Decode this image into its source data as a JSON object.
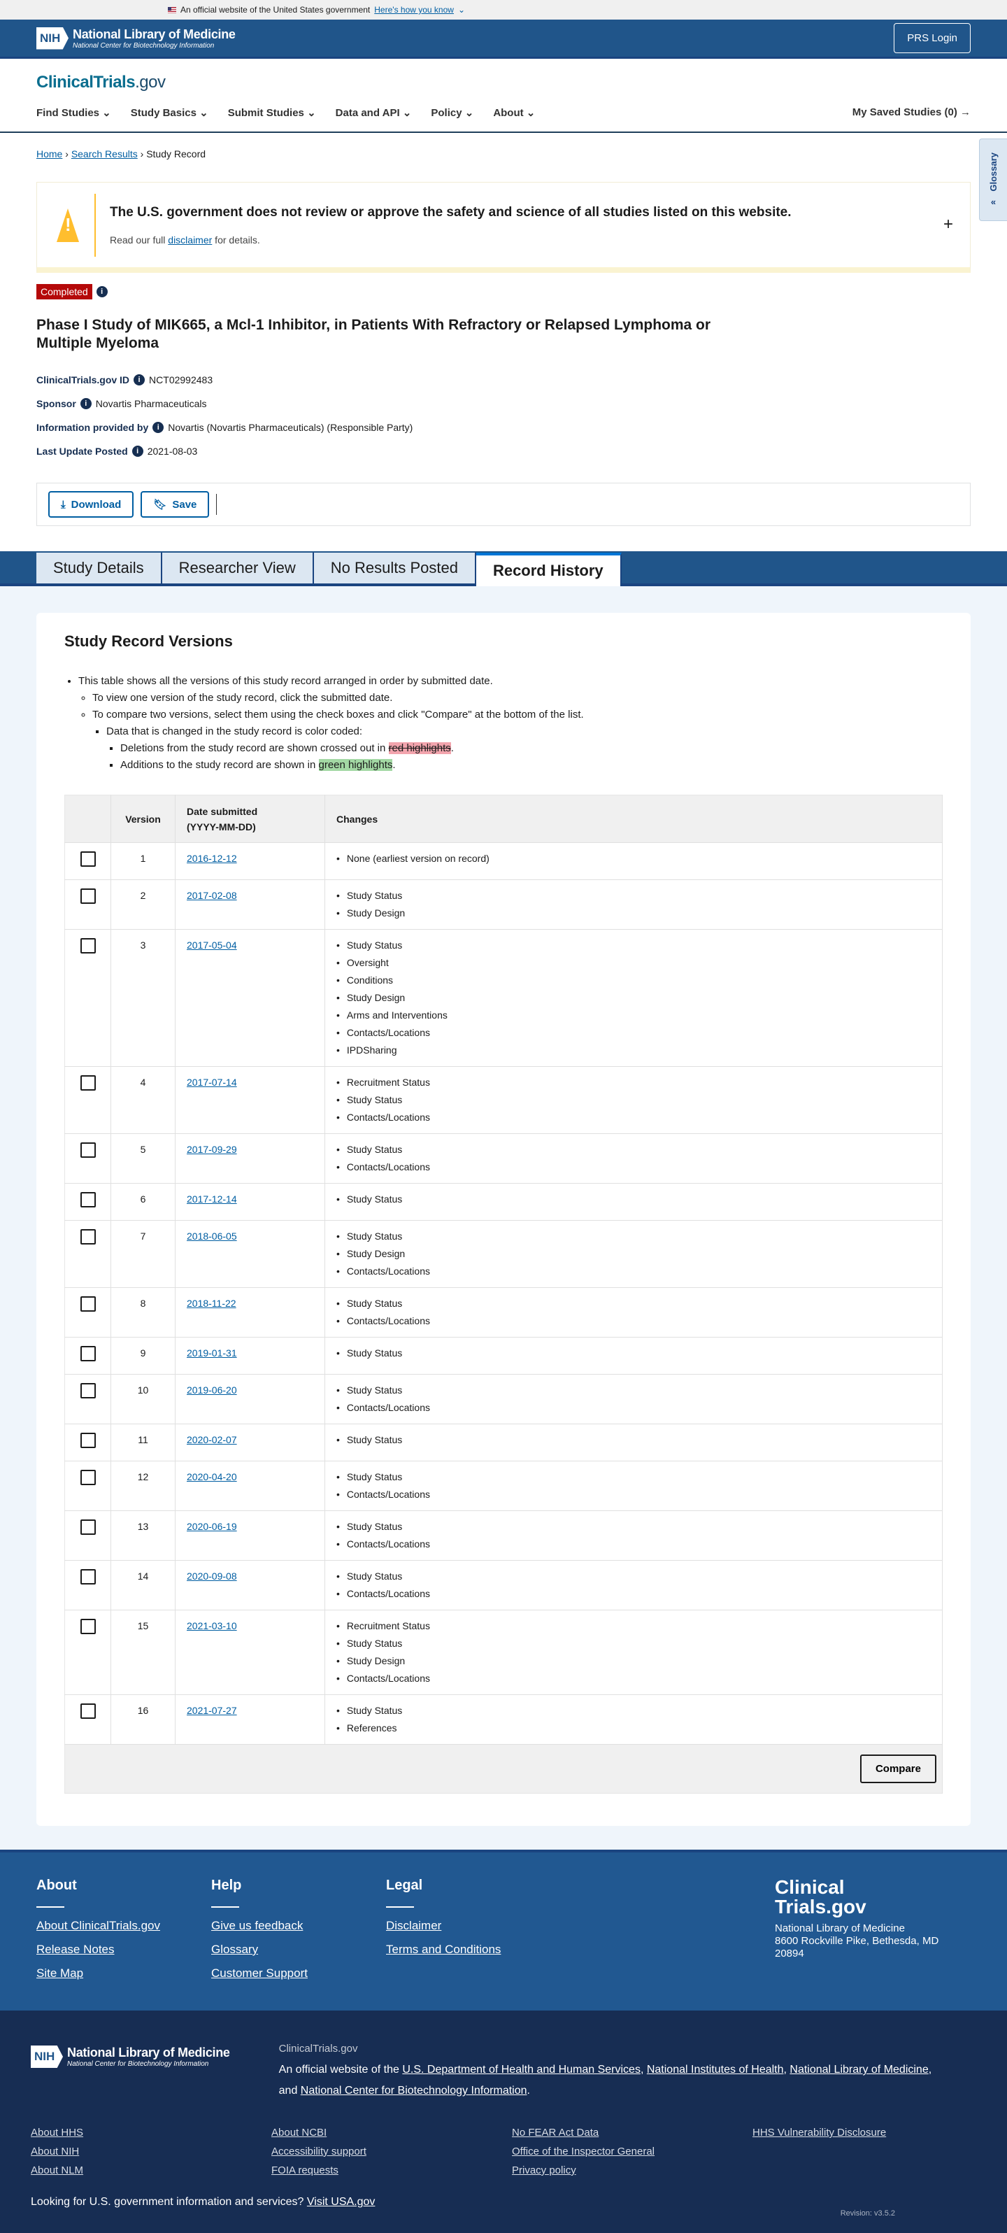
{
  "gov_banner": {
    "text": "An official website of the United States government",
    "link": "Here's how you know"
  },
  "header": {
    "nlm": "National Library of Medicine",
    "ncbi": "National Center for Biotechnology Information",
    "nih": "NIH",
    "login": "PRS Login"
  },
  "site": {
    "logo_main": "ClinicalTrials",
    "logo_suffix": ".gov"
  },
  "nav": {
    "items": [
      "Find Studies",
      "Study Basics",
      "Submit Studies",
      "Data and API",
      "Policy",
      "About"
    ],
    "saved": "My Saved Studies (0)"
  },
  "breadcrumb": [
    "Home",
    "Search Results",
    "Study Record"
  ],
  "glossary": "Glossary",
  "disclaimer": {
    "title": "The U.S. government does not review or approve the safety and science of all studies listed on this website.",
    "pre": "Read our full ",
    "link": "disclaimer",
    "post": " for details."
  },
  "study": {
    "status": "Completed",
    "title": "Phase I Study of MIK665, a Mcl-1 Inhibitor, in Patients With Refractory or Relapsed Lymphoma or Multiple Myeloma",
    "meta": [
      {
        "label": "ClinicalTrials.gov ID",
        "value": "NCT02992483"
      },
      {
        "label": "Sponsor",
        "value": "Novartis Pharmaceuticals"
      },
      {
        "label": "Information provided by",
        "value": "Novartis (Novartis Pharmaceuticals) (Responsible Party)"
      },
      {
        "label": "Last Update Posted",
        "value": "2021-08-03"
      }
    ]
  },
  "actions": {
    "download": "Download",
    "save": "Save"
  },
  "tabs": [
    "Study Details",
    "Researcher View",
    "No Results Posted",
    "Record History"
  ],
  "active_tab": "Record History",
  "versions": {
    "heading": "Study Record Versions",
    "notes": {
      "n1": "This table shows all the versions of this study record arranged in order by submitted date.",
      "n2": "To view one version of the study record, click the submitted date.",
      "n3": "To compare two versions, select them using the check boxes and click \"Compare\" at the bottom of the list.",
      "n4": "Data that is changed in the study record is color coded:",
      "n5": "Deletions from the study record are shown crossed out in ",
      "n5h": "red highlights",
      "n6": "Additions to the study record are shown in ",
      "n6h": "green highlights"
    },
    "columns": [
      "",
      "Version",
      "Date submitted",
      "(YYYY-MM-DD)",
      "Changes"
    ],
    "rows": [
      {
        "v": "1",
        "date": "2016-12-12",
        "changes": [
          "None (earliest version on record)"
        ]
      },
      {
        "v": "2",
        "date": "2017-02-08",
        "changes": [
          "Study Status",
          "Study Design"
        ]
      },
      {
        "v": "3",
        "date": "2017-05-04",
        "changes": [
          "Study Status",
          "Oversight",
          "Conditions",
          "Study Design",
          "Arms and Interventions",
          "Contacts/Locations",
          "IPDSharing"
        ]
      },
      {
        "v": "4",
        "date": "2017-07-14",
        "changes": [
          "Recruitment Status",
          "Study Status",
          "Contacts/Locations"
        ]
      },
      {
        "v": "5",
        "date": "2017-09-29",
        "changes": [
          "Study Status",
          "Contacts/Locations"
        ]
      },
      {
        "v": "6",
        "date": "2017-12-14",
        "changes": [
          "Study Status"
        ]
      },
      {
        "v": "7",
        "date": "2018-06-05",
        "changes": [
          "Study Status",
          "Study Design",
          "Contacts/Locations"
        ]
      },
      {
        "v": "8",
        "date": "2018-11-22",
        "changes": [
          "Study Status",
          "Contacts/Locations"
        ]
      },
      {
        "v": "9",
        "date": "2019-01-31",
        "changes": [
          "Study Status"
        ]
      },
      {
        "v": "10",
        "date": "2019-06-20",
        "changes": [
          "Study Status",
          "Contacts/Locations"
        ]
      },
      {
        "v": "11",
        "date": "2020-02-07",
        "changes": [
          "Study Status"
        ]
      },
      {
        "v": "12",
        "date": "2020-04-20",
        "changes": [
          "Study Status",
          "Contacts/Locations"
        ]
      },
      {
        "v": "13",
        "date": "2020-06-19",
        "changes": [
          "Study Status",
          "Contacts/Locations"
        ]
      },
      {
        "v": "14",
        "date": "2020-09-08",
        "changes": [
          "Study Status",
          "Contacts/Locations"
        ]
      },
      {
        "v": "15",
        "date": "2021-03-10",
        "changes": [
          "Recruitment Status",
          "Study Status",
          "Study Design",
          "Contacts/Locations"
        ]
      },
      {
        "v": "16",
        "date": "2021-07-27",
        "changes": [
          "Study Status",
          "References"
        ]
      }
    ],
    "compare": "Compare"
  },
  "footer": {
    "cols": [
      {
        "title": "About",
        "links": [
          "About ClinicalTrials.gov",
          "Release Notes",
          "Site Map"
        ]
      },
      {
        "title": "Help",
        "links": [
          "Give us feedback",
          "Glossary",
          "Customer Support"
        ]
      },
      {
        "title": "Legal",
        "links": [
          "Disclaimer",
          "Terms and Conditions"
        ]
      }
    ],
    "brand": {
      "l1": "Clinical",
      "l2": "Trials.gov",
      "org": "National Library of Medicine",
      "addr1": "8600 Rockville Pike, Bethesda, MD",
      "addr2": "20894"
    },
    "site": "ClinicalTrials.gov",
    "official_pre": "An official website of the ",
    "agencies": [
      "U.S. Department of Health and Human Services",
      "National Institutes of Health",
      "National Library of Medicine",
      "National Center for Biotechnology Information"
    ],
    "links": [
      "About HHS",
      "About NCBI",
      "No FEAR Act Data",
      "HHS Vulnerability Disclosure",
      "About NIH",
      "Accessibility support",
      "Office of the Inspector General",
      "",
      "About NLM",
      "FOIA requests",
      "Privacy policy",
      ""
    ],
    "usa_text": "Looking for U.S. government information and services?",
    "usa_link": "Visit USA.gov",
    "revision": "Revision: v3.5.2"
  }
}
